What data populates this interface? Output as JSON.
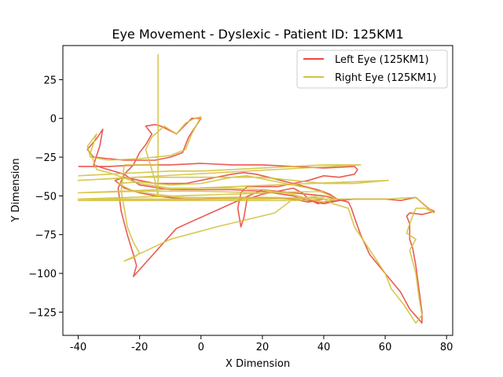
{
  "chart_data": {
    "type": "line",
    "title": "Eye Movement - Dyslexic - Patient ID: 125KM1",
    "xlabel": "X Dimension",
    "ylabel": "Y Dimension",
    "xlim": [
      -45,
      82
    ],
    "ylim": [
      -140,
      47
    ],
    "xticks": [
      -40,
      -20,
      0,
      20,
      40,
      60,
      80
    ],
    "yticks": [
      25,
      0,
      -25,
      -50,
      -75,
      -100,
      -125
    ],
    "grid": false,
    "legend_position": "top-right",
    "series": [
      {
        "name": "Left Eye (125KM1)",
        "color": "#e8483f",
        "points": [
          [
            -40,
            -31
          ],
          [
            -30,
            -31
          ],
          [
            -20,
            -30
          ],
          [
            -10,
            -30
          ],
          [
            0,
            -29
          ],
          [
            10,
            -30
          ],
          [
            20,
            -30
          ],
          [
            30,
            -31
          ],
          [
            40,
            -32
          ],
          [
            50,
            -31
          ],
          [
            51,
            -33
          ],
          [
            50,
            -36
          ],
          [
            45,
            -38
          ],
          [
            40,
            -37
          ],
          [
            35,
            -40
          ],
          [
            30,
            -42
          ],
          [
            25,
            -44
          ],
          [
            20,
            -44
          ],
          [
            15,
            -44
          ],
          [
            13,
            -48
          ],
          [
            12,
            -58
          ],
          [
            13,
            -70
          ],
          [
            14,
            -64
          ],
          [
            15,
            -52
          ],
          [
            20,
            -49
          ],
          [
            25,
            -47
          ],
          [
            30,
            -45
          ],
          [
            33,
            -48
          ],
          [
            35,
            -52
          ],
          [
            38,
            -55
          ],
          [
            40,
            -54
          ],
          [
            45,
            -53
          ],
          [
            50,
            -52
          ],
          [
            55,
            -52
          ],
          [
            60,
            -52
          ],
          [
            65,
            -53
          ],
          [
            70,
            -51
          ],
          [
            74,
            -58
          ],
          [
            76,
            -60
          ],
          [
            72,
            -62
          ],
          [
            68,
            -61
          ],
          [
            67,
            -63
          ],
          [
            68,
            -68
          ],
          [
            68,
            -78
          ],
          [
            69,
            -84
          ],
          [
            70,
            -95
          ],
          [
            71,
            -110
          ],
          [
            72,
            -125
          ],
          [
            72,
            -132
          ],
          [
            68,
            -123
          ],
          [
            65,
            -112
          ],
          [
            60,
            -100
          ],
          [
            55,
            -88
          ],
          [
            52,
            -75
          ],
          [
            50,
            -64
          ],
          [
            49,
            -58
          ],
          [
            48,
            -54
          ],
          [
            44,
            -52
          ],
          [
            40,
            -50
          ],
          [
            35,
            -49
          ],
          [
            30,
            -48
          ],
          [
            25,
            -47
          ],
          [
            20,
            -46
          ],
          [
            -8,
            -71
          ],
          [
            -22,
            -102
          ],
          [
            -21,
            -95
          ],
          [
            -22,
            -88
          ],
          [
            -24,
            -75
          ],
          [
            -26,
            -60
          ],
          [
            -27,
            -45
          ],
          [
            -25,
            -36
          ],
          [
            -22,
            -30
          ],
          [
            -20,
            -22
          ],
          [
            -18,
            -17
          ],
          [
            -16,
            -10
          ],
          [
            -18,
            -5
          ],
          [
            -15,
            -4
          ],
          [
            -13,
            -5
          ],
          [
            -10,
            -8
          ],
          [
            -8,
            -10
          ],
          [
            -3,
            0
          ],
          [
            0,
            0
          ],
          [
            -2,
            -6
          ],
          [
            -4,
            -12
          ],
          [
            -6,
            -22
          ],
          [
            -10,
            -25
          ],
          [
            -15,
            -27
          ],
          [
            -20,
            -27
          ],
          [
            -25,
            -27
          ],
          [
            -30,
            -26
          ],
          [
            -35,
            -25
          ],
          [
            -37,
            -20
          ],
          [
            -34,
            -13
          ],
          [
            -32,
            -7
          ],
          [
            -33,
            -18
          ],
          [
            -35,
            -30
          ],
          [
            -32,
            -32
          ],
          [
            -25,
            -36
          ],
          [
            -20,
            -43
          ],
          [
            -10,
            -46
          ],
          [
            0,
            -46
          ],
          [
            10,
            -46
          ],
          [
            20,
            -47
          ],
          [
            30,
            -50
          ],
          [
            35,
            -53
          ],
          [
            40,
            -55
          ],
          [
            45,
            -53
          ],
          [
            42,
            -49
          ],
          [
            38,
            -46
          ],
          [
            34,
            -44
          ],
          [
            30,
            -42
          ],
          [
            26,
            -40
          ],
          [
            22,
            -38
          ],
          [
            18,
            -36
          ],
          [
            14,
            -35
          ],
          [
            10,
            -36
          ],
          [
            5,
            -38
          ],
          [
            0,
            -40
          ],
          [
            -5,
            -42
          ],
          [
            -10,
            -42
          ],
          [
            -15,
            -42
          ],
          [
            -20,
            -40
          ],
          [
            -25,
            -38
          ],
          [
            -28,
            -40
          ],
          [
            -25,
            -45
          ],
          [
            -20,
            -48
          ],
          [
            -15,
            -50
          ],
          [
            -10,
            -51
          ],
          [
            -5,
            -52
          ],
          [
            0,
            -52
          ],
          [
            10,
            -51
          ],
          [
            20,
            -51
          ],
          [
            30,
            -52
          ],
          [
            35,
            -54
          ],
          [
            40,
            -52
          ]
        ]
      },
      {
        "name": "Right Eye (125KM1)",
        "color": "#d4c23e",
        "points": [
          [
            -40,
            -37
          ],
          [
            -30,
            -36
          ],
          [
            -20,
            -35
          ],
          [
            -10,
            -34
          ],
          [
            0,
            -34
          ],
          [
            10,
            -33
          ],
          [
            20,
            -32
          ],
          [
            30,
            -31
          ],
          [
            40,
            -30
          ],
          [
            52,
            -30
          ],
          [
            -40,
            -40
          ],
          [
            -30,
            -39
          ],
          [
            -20,
            -38
          ],
          [
            -10,
            -38
          ],
          [
            0,
            -38
          ],
          [
            10,
            -38
          ],
          [
            20,
            -38
          ],
          [
            30,
            -40
          ],
          [
            40,
            -42
          ],
          [
            50,
            -42
          ],
          [
            61,
            -40
          ],
          [
            -40,
            -48
          ],
          [
            -20,
            -47
          ],
          [
            0,
            -47
          ],
          [
            20,
            -48
          ],
          [
            40,
            -47
          ],
          [
            -40,
            -52
          ],
          [
            -20,
            -52
          ],
          [
            0,
            -52
          ],
          [
            20,
            -52
          ],
          [
            40,
            -51
          ],
          [
            -40,
            -53
          ],
          [
            -10,
            -53
          ],
          [
            10,
            -53
          ],
          [
            30,
            -53
          ],
          [
            40,
            -52
          ],
          [
            55,
            -52
          ],
          [
            60,
            -52
          ],
          [
            70,
            -51
          ],
          [
            76,
            -61
          ],
          [
            73,
            -58
          ],
          [
            70,
            -58
          ],
          [
            68,
            -68
          ],
          [
            67,
            -74
          ],
          [
            70,
            -78
          ],
          [
            68,
            -85
          ],
          [
            70,
            -100
          ],
          [
            71,
            -115
          ],
          [
            72,
            -127
          ],
          [
            70,
            -132
          ],
          [
            66,
            -120
          ],
          [
            62,
            -110
          ],
          [
            60,
            -100
          ],
          [
            55,
            -85
          ],
          [
            50,
            -70
          ],
          [
            48,
            -58
          ],
          [
            43,
            -55
          ],
          [
            40,
            -52
          ],
          [
            35,
            -51
          ],
          [
            30,
            -52
          ],
          [
            24,
            -61
          ],
          [
            5,
            -70
          ],
          [
            -10,
            -78
          ],
          [
            -25,
            -92
          ],
          [
            -22,
            -90
          ],
          [
            -20,
            -87
          ],
          [
            -22,
            -80
          ],
          [
            -24,
            -70
          ],
          [
            -25,
            -58
          ],
          [
            -26,
            -47
          ],
          [
            -25,
            -30
          ],
          [
            -14,
            -30
          ],
          [
            -14,
            41
          ],
          [
            -14,
            -50
          ],
          [
            -15,
            -40
          ],
          [
            -18,
            -20
          ],
          [
            -16,
            -12
          ],
          [
            -12,
            -5
          ],
          [
            -8,
            -10
          ],
          [
            -5,
            -3
          ],
          [
            -2,
            0
          ],
          [
            0,
            1
          ],
          [
            -3,
            -10
          ],
          [
            -5,
            -20
          ],
          [
            -10,
            -24
          ],
          [
            -20,
            -26
          ],
          [
            -30,
            -27
          ],
          [
            -36,
            -25
          ],
          [
            -37,
            -18
          ],
          [
            -34,
            -10
          ],
          [
            -36,
            -22
          ],
          [
            -34,
            -33
          ],
          [
            -30,
            -35
          ],
          [
            -20,
            -42
          ],
          [
            -10,
            -45
          ],
          [
            0,
            -45
          ],
          [
            10,
            -45
          ],
          [
            20,
            -46
          ],
          [
            30,
            -49
          ],
          [
            35,
            -52
          ],
          [
            40,
            -54
          ],
          [
            44,
            -52
          ],
          [
            40,
            -48
          ],
          [
            35,
            -45
          ],
          [
            30,
            -43
          ],
          [
            25,
            -41
          ],
          [
            20,
            -39
          ],
          [
            15,
            -37
          ],
          [
            10,
            -38
          ],
          [
            5,
            -40
          ],
          [
            0,
            -42
          ],
          [
            -10,
            -43
          ],
          [
            -20,
            -41
          ],
          [
            -27,
            -42
          ],
          [
            -22,
            -47
          ],
          [
            -15,
            -49
          ],
          [
            -5,
            -51
          ],
          [
            5,
            -51
          ],
          [
            15,
            -51
          ],
          [
            25,
            -51
          ],
          [
            32,
            -52
          ],
          [
            38,
            -50
          ]
        ]
      }
    ]
  }
}
